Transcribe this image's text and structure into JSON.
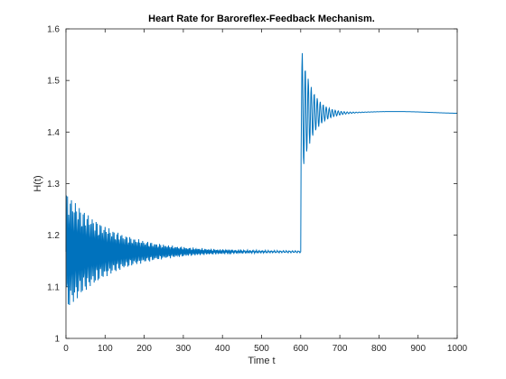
{
  "chart_data": {
    "type": "line",
    "title": "Heart Rate for Baroreflex-Feedback Mechanism.",
    "xlabel": "Time t",
    "ylabel": "H(t)",
    "xlim": [
      0,
      1000
    ],
    "ylim": [
      1,
      1.6
    ],
    "xticks": [
      0,
      100,
      200,
      300,
      400,
      500,
      600,
      700,
      800,
      900,
      1000
    ],
    "yticks": [
      1,
      1.1,
      1.2,
      1.3,
      1.4,
      1.5,
      1.6
    ],
    "xtick_labels": [
      "0",
      "100",
      "200",
      "300",
      "400",
      "500",
      "600",
      "700",
      "800",
      "900",
      "1000"
    ],
    "ytick_labels": [
      "1",
      "1.1",
      "1.2",
      "1.3",
      "1.4",
      "1.5",
      "1.6"
    ],
    "grid": false,
    "line_color": "#0072BD",
    "series": [
      {
        "x": [
          0,
          2,
          5,
          8,
          10,
          15,
          20,
          25,
          30,
          40,
          50,
          60,
          70,
          80,
          90,
          100,
          120,
          140,
          160,
          180,
          200,
          220,
          240,
          260,
          280,
          300,
          350,
          400,
          450,
          500,
          550,
          599,
          601,
          603,
          605,
          610,
          615,
          620,
          630,
          640,
          650,
          660,
          670,
          680,
          690,
          700,
          720,
          750,
          800,
          850,
          900,
          950,
          1000
        ],
        "y": [
          1.04,
          1.28,
          1.06,
          1.28,
          1.07,
          1.27,
          1.08,
          1.27,
          1.08,
          1.26,
          1.09,
          1.26,
          1.1,
          1.25,
          1.1,
          1.25,
          1.11,
          1.24,
          1.12,
          1.23,
          1.13,
          1.21,
          1.15,
          1.19,
          1.17,
          1.17,
          1.168,
          1.168,
          1.168,
          1.168,
          1.168,
          1.168,
          1.3,
          1.47,
          1.56,
          1.37,
          1.53,
          1.39,
          1.51,
          1.4,
          1.49,
          1.41,
          1.47,
          1.42,
          1.45,
          1.43,
          1.44,
          1.438,
          1.438,
          1.438,
          1.438,
          1.438,
          1.438
        ]
      }
    ]
  }
}
